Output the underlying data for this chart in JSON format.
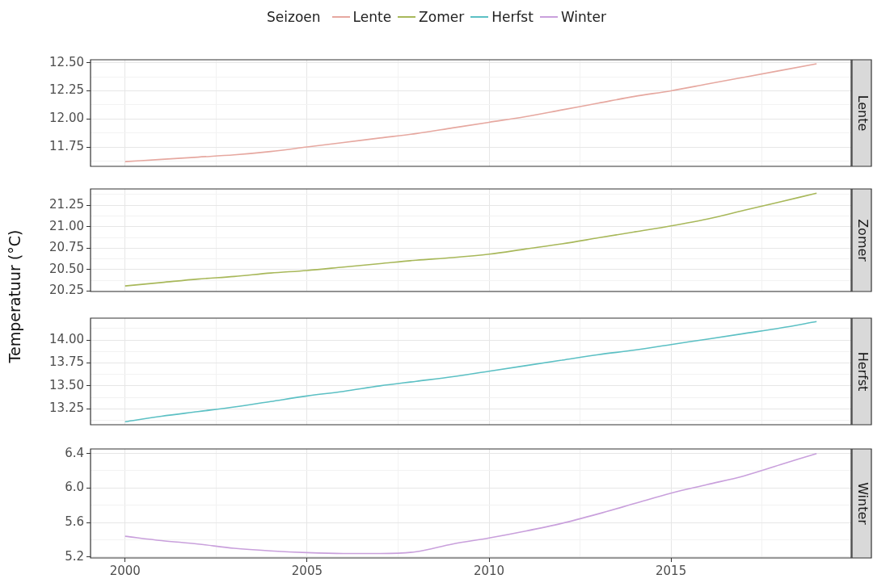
{
  "chart_data": [
    {
      "type": "line",
      "title": "Lente",
      "ylabel": "Temperatuur  (°C)",
      "legend_title": "Seizoen",
      "legend": "top",
      "grid": true,
      "tick_labels": "y",
      "x": [
        2000,
        2001,
        2002,
        2003,
        2004,
        2005,
        2006,
        2007,
        2008,
        2009,
        2010,
        2011,
        2012,
        2013,
        2014,
        2015,
        2016,
        2017,
        2018,
        2019
      ],
      "xlim": [
        1999.05,
        2019.95
      ],
      "xticks": [
        2000,
        {
          "value": 2002.5,
          "label": null
        },
        2005,
        {
          "value": 2007.5,
          "label": null
        },
        2010,
        {
          "value": 2012.5,
          "label": null
        },
        2015,
        {
          "value": 2017.5,
          "label": null
        }
      ],
      "ylim": [
        11.578,
        12.526
      ],
      "yticks": [
        {
          "value": 11.625,
          "label": null
        },
        {
          "value": 11.75,
          "label": "11.75"
        },
        {
          "value": 11.875,
          "label": null
        },
        {
          "value": 12.0,
          "label": "12.00"
        },
        {
          "value": 12.125,
          "label": null
        },
        {
          "value": 12.25,
          "label": "12.25"
        },
        {
          "value": 12.375,
          "label": null
        },
        {
          "value": 12.5,
          "label": "12.50"
        }
      ],
      "series": [
        {
          "name": "Lente",
          "color": "#e6a8a0",
          "values": [
            11.62,
            11.64,
            11.66,
            11.68,
            11.71,
            11.75,
            11.79,
            11.83,
            11.87,
            11.92,
            11.97,
            12.02,
            12.08,
            12.14,
            12.2,
            12.25,
            12.31,
            12.37,
            12.43,
            12.49
          ]
        }
      ]
    },
    {
      "type": "line",
      "title": "Zomer",
      "legend": "top",
      "grid": true,
      "tick_labels": "y",
      "x": [
        2000,
        2001,
        2002,
        2003,
        2004,
        2005,
        2006,
        2007,
        2008,
        2009,
        2010,
        2011,
        2012,
        2013,
        2014,
        2015,
        2016,
        2017,
        2018,
        2019
      ],
      "xlim": [
        1999.05,
        2019.95
      ],
      "xticks": [
        2000,
        {
          "value": 2002.5,
          "label": null
        },
        2005,
        {
          "value": 2007.5,
          "label": null
        },
        2010,
        {
          "value": 2012.5,
          "label": null
        },
        2015,
        {
          "value": 2017.5,
          "label": null
        }
      ],
      "ylim": [
        20.245,
        21.44
      ],
      "yticks": [
        {
          "value": 20.25,
          "label": "20.25"
        },
        {
          "value": 20.375,
          "label": null
        },
        {
          "value": 20.5,
          "label": "20.50"
        },
        {
          "value": 20.625,
          "label": null
        },
        {
          "value": 20.75,
          "label": "20.75"
        },
        {
          "value": 20.875,
          "label": null
        },
        {
          "value": 21.0,
          "label": "21.00"
        },
        {
          "value": 21.125,
          "label": null
        },
        {
          "value": 21.25,
          "label": "21.25"
        },
        {
          "value": 21.375,
          "label": null
        }
      ],
      "series": [
        {
          "name": "Zomer",
          "color": "#a8b85a",
          "values": [
            20.31,
            20.35,
            20.39,
            20.42,
            20.46,
            20.49,
            20.53,
            20.57,
            20.61,
            20.64,
            20.68,
            20.74,
            20.8,
            20.87,
            20.94,
            21.01,
            21.09,
            21.19,
            21.29,
            21.39
          ]
        }
      ]
    },
    {
      "type": "line",
      "title": "Herfst",
      "legend": "top",
      "grid": true,
      "tick_labels": "y",
      "x": [
        2000,
        2001,
        2002,
        2003,
        2004,
        2005,
        2006,
        2007,
        2008,
        2009,
        2010,
        2011,
        2012,
        2013,
        2014,
        2015,
        2016,
        2017,
        2018,
        2019
      ],
      "xlim": [
        1999.05,
        2019.95
      ],
      "xticks": [
        2000,
        {
          "value": 2002.5,
          "label": null
        },
        2005,
        {
          "value": 2007.5,
          "label": null
        },
        2010,
        {
          "value": 2012.5,
          "label": null
        },
        2015,
        {
          "value": 2017.5,
          "label": null
        }
      ],
      "ylim": [
        13.077,
        14.238
      ],
      "yticks": [
        {
          "value": 13.125,
          "label": null
        },
        {
          "value": 13.25,
          "label": "13.25"
        },
        {
          "value": 13.375,
          "label": null
        },
        {
          "value": 13.5,
          "label": "13.50"
        },
        {
          "value": 13.625,
          "label": null
        },
        {
          "value": 13.75,
          "label": "13.75"
        },
        {
          "value": 13.875,
          "label": null
        },
        {
          "value": 14.0,
          "label": "14.00"
        },
        {
          "value": 14.125,
          "label": null
        }
      ],
      "series": [
        {
          "name": "Herfst",
          "color": "#5cc0c4",
          "values": [
            13.11,
            13.17,
            13.22,
            13.27,
            13.33,
            13.39,
            13.44,
            13.5,
            13.55,
            13.6,
            13.66,
            13.72,
            13.78,
            13.84,
            13.89,
            13.95,
            14.01,
            14.07,
            14.13,
            14.2
          ]
        }
      ]
    },
    {
      "type": "line",
      "title": "Winter",
      "legend": "top",
      "grid": true,
      "x": [
        2000,
        2001,
        2002,
        2003,
        2004,
        2005,
        2006,
        2007,
        2008,
        2009,
        2010,
        2011,
        2012,
        2013,
        2014,
        2015,
        2016,
        2017,
        2018,
        2019
      ],
      "xlim": [
        1999.05,
        2019.95
      ],
      "xticks": [
        2000,
        {
          "value": 2002.5,
          "label": null
        },
        2005,
        {
          "value": 2007.5,
          "label": null
        },
        2010,
        {
          "value": 2012.5,
          "label": null
        },
        2015,
        {
          "value": 2017.5,
          "label": null
        }
      ],
      "ylim": [
        5.188,
        6.453
      ],
      "yticks": [
        5.2,
        {
          "value": 5.4,
          "label": null
        },
        5.6,
        {
          "value": 5.8,
          "label": null
        },
        {
          "value": 6.0,
          "label": "6.0"
        },
        {
          "value": 6.2,
          "label": null
        },
        6.4
      ],
      "series": [
        {
          "name": "Winter",
          "color": "#c9a0dc",
          "values": [
            5.44,
            5.39,
            5.35,
            5.3,
            5.27,
            5.25,
            5.24,
            5.24,
            5.26,
            5.35,
            5.42,
            5.5,
            5.59,
            5.7,
            5.82,
            5.94,
            6.04,
            6.14,
            6.27,
            6.4
          ]
        }
      ]
    }
  ]
}
